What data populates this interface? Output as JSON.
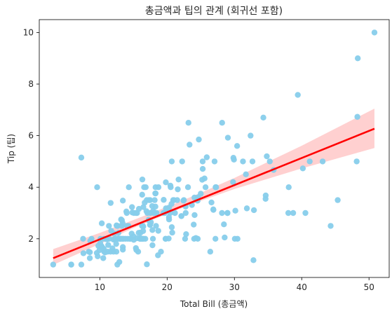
{
  "chart_data": {
    "type": "scatter",
    "title": "총금액과 팁의 관계 (회귀선 포함)",
    "xlabel": "Total Bill (총금액)",
    "ylabel": "Tip (팁)",
    "xlim": [
      1.0,
      53.0
    ],
    "ylim": [
      0.5,
      10.5
    ],
    "xticks": [
      10,
      20,
      30,
      40,
      50
    ],
    "yticks": [
      2,
      4,
      6,
      8,
      10
    ],
    "grid": false,
    "colors": {
      "points": "#87CEEB",
      "regression_line": "#ff0000",
      "confidence_band": "#ffc8c8"
    },
    "scatter_points": [
      [
        3.07,
        1.0
      ],
      [
        5.75,
        1.0
      ],
      [
        7.25,
        1.0
      ],
      [
        9.55,
        1.45
      ],
      [
        10.07,
        1.83
      ],
      [
        10.33,
        1.67
      ],
      [
        10.34,
        1.66
      ],
      [
        10.27,
        1.71
      ],
      [
        10.29,
        2.6
      ],
      [
        10.51,
        1.25
      ],
      [
        10.59,
        1.61
      ],
      [
        10.63,
        2.0
      ],
      [
        10.65,
        1.5
      ],
      [
        11.02,
        1.98
      ],
      [
        11.17,
        1.5
      ],
      [
        11.24,
        1.76
      ],
      [
        11.35,
        2.5
      ],
      [
        11.38,
        2.0
      ],
      [
        11.59,
        1.5
      ],
      [
        11.61,
        3.39
      ],
      [
        11.69,
        2.31
      ],
      [
        11.87,
        1.63
      ],
      [
        12.02,
        1.97
      ],
      [
        12.03,
        1.5
      ],
      [
        12.16,
        2.2
      ],
      [
        12.26,
        2.0
      ],
      [
        12.43,
        1.8
      ],
      [
        12.46,
        1.5
      ],
      [
        12.48,
        2.52
      ],
      [
        12.54,
        2.5
      ],
      [
        12.6,
        1.0
      ],
      [
        12.66,
        2.5
      ],
      [
        12.69,
        2.0
      ],
      [
        12.74,
        2.01
      ],
      [
        12.76,
        2.23
      ],
      [
        12.9,
        1.1
      ],
      [
        13.0,
        2.0
      ],
      [
        13.03,
        2.0
      ],
      [
        13.13,
        2.0
      ],
      [
        13.16,
        2.75
      ],
      [
        13.27,
        2.5
      ],
      [
        13.28,
        2.72
      ],
      [
        13.37,
        2.0
      ],
      [
        13.39,
        2.61
      ],
      [
        13.42,
        1.68
      ],
      [
        13.42,
        3.48
      ],
      [
        13.51,
        2.0
      ],
      [
        13.81,
        2.0
      ],
      [
        13.94,
        3.06
      ],
      [
        14.0,
        3.0
      ],
      [
        14.07,
        2.5
      ],
      [
        14.15,
        2.0
      ],
      [
        14.26,
        2.5
      ],
      [
        14.31,
        4.0
      ],
      [
        14.48,
        2.0
      ],
      [
        14.52,
        2.0
      ],
      [
        14.73,
        2.2
      ],
      [
        14.78,
        3.23
      ],
      [
        14.83,
        3.02
      ],
      [
        15.01,
        2.09
      ],
      [
        15.04,
        1.96
      ],
      [
        15.06,
        3.0
      ],
      [
        15.36,
        1.64
      ],
      [
        15.38,
        3.0
      ],
      [
        15.42,
        1.57
      ],
      [
        15.48,
        2.02
      ],
      [
        15.53,
        3.0
      ],
      [
        15.69,
        1.5
      ],
      [
        15.77,
        2.23
      ],
      [
        15.81,
        3.16
      ],
      [
        15.95,
        2.0
      ],
      [
        15.98,
        2.03
      ],
      [
        16.0,
        2.0
      ],
      [
        16.04,
        2.24
      ],
      [
        16.21,
        2.0
      ],
      [
        16.27,
        2.5
      ],
      [
        16.29,
        3.71
      ],
      [
        16.31,
        2.0
      ],
      [
        16.32,
        4.3
      ],
      [
        16.4,
        2.5
      ],
      [
        16.45,
        2.47
      ],
      [
        16.47,
        3.23
      ],
      [
        16.49,
        2.0
      ],
      [
        16.58,
        4.0
      ],
      [
        16.66,
        3.4
      ],
      [
        16.82,
        4.0
      ],
      [
        16.93,
        3.07
      ],
      [
        16.97,
        3.5
      ],
      [
        16.99,
        1.01
      ],
      [
        17.07,
        3.0
      ],
      [
        17.26,
        2.74
      ],
      [
        17.29,
        2.71
      ],
      [
        17.31,
        3.5
      ],
      [
        17.46,
        2.54
      ],
      [
        17.47,
        3.5
      ],
      [
        17.51,
        3.0
      ],
      [
        17.59,
        2.64
      ],
      [
        17.78,
        3.27
      ],
      [
        17.81,
        2.34
      ],
      [
        17.82,
        1.75
      ],
      [
        17.89,
        2.0
      ],
      [
        17.92,
        3.08
      ],
      [
        18.04,
        3.0
      ],
      [
        18.15,
        3.5
      ],
      [
        18.24,
        3.76
      ],
      [
        18.26,
        3.25
      ],
      [
        18.28,
        4.0
      ],
      [
        18.29,
        3.76
      ],
      [
        18.35,
        2.5
      ],
      [
        18.43,
        3.0
      ],
      [
        18.64,
        1.36
      ],
      [
        18.69,
        2.31
      ],
      [
        18.71,
        4.0
      ],
      [
        19.08,
        1.5
      ],
      [
        19.44,
        3.0
      ],
      [
        19.49,
        3.51
      ],
      [
        19.65,
        3.0
      ],
      [
        19.77,
        2.0
      ],
      [
        19.81,
        4.19
      ],
      [
        19.82,
        3.18
      ],
      [
        20.08,
        3.15
      ],
      [
        20.23,
        2.01
      ],
      [
        20.27,
        2.83
      ],
      [
        20.29,
        3.21
      ],
      [
        20.29,
        2.75
      ],
      [
        20.45,
        3.0
      ],
      [
        20.49,
        4.06
      ],
      [
        20.53,
        4.0
      ],
      [
        20.65,
        3.35
      ],
      [
        20.69,
        2.45
      ],
      [
        20.76,
        2.24
      ],
      [
        20.9,
        3.5
      ],
      [
        21.01,
        3.5
      ],
      [
        21.16,
        3.0
      ],
      [
        21.5,
        3.5
      ],
      [
        21.58,
        3.92
      ],
      [
        21.7,
        4.3
      ],
      [
        22.12,
        2.88
      ],
      [
        22.23,
        5.0
      ],
      [
        22.42,
        3.48
      ],
      [
        22.49,
        3.5
      ],
      [
        22.67,
        2.0
      ],
      [
        22.75,
        3.25
      ],
      [
        22.76,
        3.0
      ],
      [
        22.82,
        2.18
      ],
      [
        23.1,
        4.0
      ],
      [
        23.17,
        6.5
      ],
      [
        23.33,
        5.65
      ],
      [
        23.68,
        3.31
      ],
      [
        23.95,
        2.55
      ],
      [
        24.01,
        2.0
      ],
      [
        24.06,
        3.6
      ],
      [
        24.08,
        2.92
      ],
      [
        24.27,
        2.03
      ],
      [
        24.52,
        3.48
      ],
      [
        24.55,
        2.0
      ],
      [
        24.59,
        3.61
      ],
      [
        24.71,
        5.85
      ],
      [
        25.0,
        3.75
      ],
      [
        25.21,
        4.29
      ],
      [
        25.28,
        5.0
      ],
      [
        25.29,
        4.71
      ],
      [
        25.56,
        4.34
      ],
      [
        25.71,
        4.0
      ],
      [
        25.89,
        5.16
      ],
      [
        26.41,
        1.5
      ],
      [
        26.59,
        3.41
      ],
      [
        26.86,
        3.14
      ],
      [
        26.88,
        3.12
      ],
      [
        27.05,
        5.0
      ],
      [
        27.18,
        2.0
      ],
      [
        27.2,
        4.0
      ],
      [
        27.28,
        4.0
      ],
      [
        28.15,
        3.0
      ],
      [
        28.17,
        6.5
      ],
      [
        28.44,
        2.56
      ],
      [
        28.55,
        2.05
      ],
      [
        28.97,
        3.0
      ],
      [
        29.03,
        5.92
      ],
      [
        29.8,
        4.2
      ],
      [
        29.85,
        5.14
      ],
      [
        29.93,
        5.07
      ],
      [
        30.06,
        2.0
      ],
      [
        30.14,
        3.09
      ],
      [
        30.4,
        5.6
      ],
      [
        30.46,
        2.0
      ],
      [
        31.27,
        5.0
      ],
      [
        31.71,
        4.5
      ],
      [
        31.85,
        3.18
      ],
      [
        32.4,
        6.0
      ],
      [
        32.68,
        5.0
      ],
      [
        32.83,
        1.17
      ],
      [
        32.9,
        3.11
      ],
      [
        34.3,
        6.7
      ],
      [
        34.63,
        3.55
      ],
      [
        34.65,
        3.68
      ],
      [
        34.81,
        5.2
      ],
      [
        35.26,
        5.0
      ],
      [
        35.83,
        4.67
      ],
      [
        38.01,
        3.0
      ],
      [
        38.07,
        4.0
      ],
      [
        38.73,
        3.0
      ],
      [
        39.42,
        7.58
      ],
      [
        40.17,
        4.73
      ],
      [
        40.55,
        3.0
      ],
      [
        41.19,
        5.0
      ],
      [
        43.11,
        5.0
      ],
      [
        44.3,
        2.5
      ],
      [
        45.35,
        3.5
      ],
      [
        48.17,
        5.0
      ],
      [
        48.27,
        6.73
      ],
      [
        48.33,
        9.0
      ],
      [
        50.81,
        10.0
      ],
      [
        7.25,
        5.15
      ],
      [
        7.51,
        2.0
      ],
      [
        8.51,
        1.25
      ],
      [
        8.52,
        1.48
      ],
      [
        8.58,
        1.92
      ],
      [
        8.77,
        2.0
      ],
      [
        8.35,
        1.5
      ],
      [
        9.6,
        4.0
      ],
      [
        9.68,
        1.32
      ],
      [
        9.78,
        1.73
      ],
      [
        9.94,
        1.56
      ],
      [
        7.56,
        1.44
      ],
      [
        5.75,
        1.0
      ],
      [
        10.09,
        2.0
      ],
      [
        10.77,
        1.47
      ],
      [
        13.0,
        2.0
      ],
      [
        13.42,
        1.58
      ],
      [
        16.43,
        2.3
      ],
      [
        16.76,
        2.0
      ],
      [
        22.12,
        2.88
      ],
      [
        24.52,
        3.48
      ],
      [
        28.97,
        3.0
      ],
      [
        17.46,
        2.54
      ],
      [
        19.77,
        2.0
      ],
      [
        20.69,
        5.0
      ]
    ],
    "regression": {
      "x_start": 3.07,
      "x_end": 50.81,
      "y_start": 1.25,
      "y_end": 6.27
    },
    "confidence_band": [
      [
        3.07,
        0.99,
        1.6
      ],
      [
        10.0,
        1.8,
        2.23
      ],
      [
        15.0,
        2.42,
        2.73
      ],
      [
        20.0,
        2.97,
        3.24
      ],
      [
        25.0,
        3.47,
        3.78
      ],
      [
        30.0,
        3.93,
        4.36
      ],
      [
        40.0,
        4.73,
        5.61
      ],
      [
        50.81,
        5.52,
        7.05
      ]
    ]
  }
}
